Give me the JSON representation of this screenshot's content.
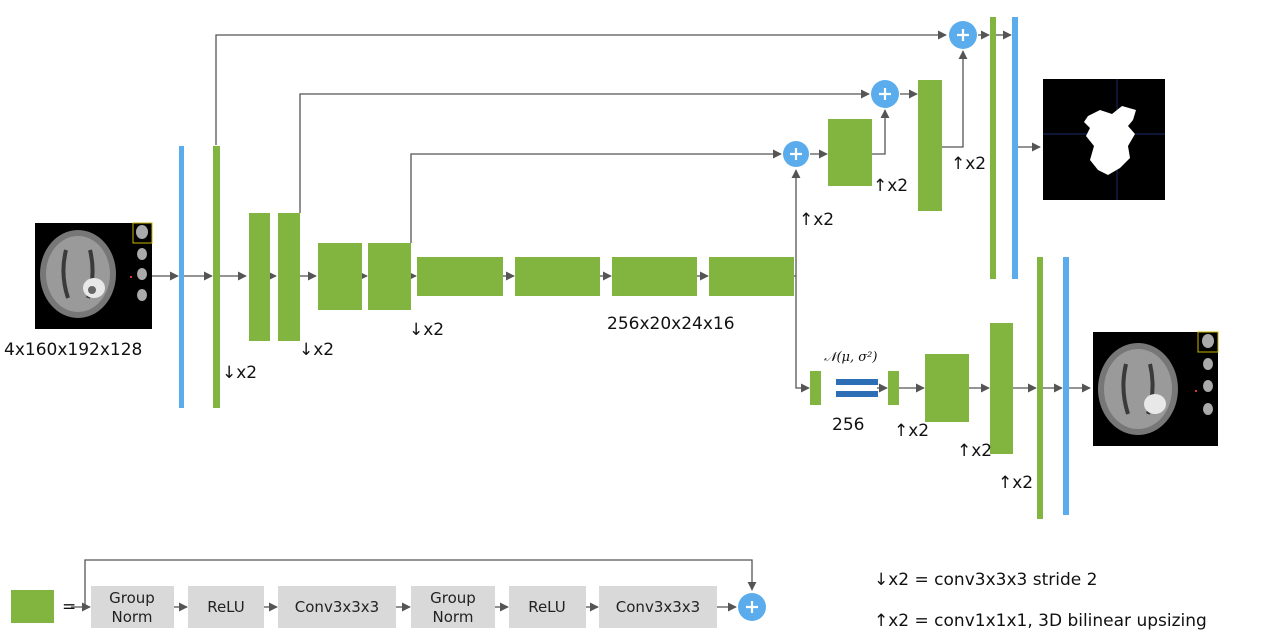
{
  "colors": {
    "green": "#82b540",
    "blue": "#5aacec",
    "darkblue": "#2c6fb6",
    "plus": "#5aacec",
    "grey_box": "#d9d9d9",
    "line": "#555555"
  },
  "labels": {
    "input_dims": "4x160x192x128",
    "bottleneck_dims": "256x20x24x16",
    "down_x2": "↓x2",
    "up_x2": "↑x2",
    "latent_dist": "𝒩(μ, σ²)",
    "latent_size": "256"
  },
  "legend": {
    "equals": "=",
    "blocks": [
      {
        "line1": "Group",
        "line2": "Norm"
      },
      {
        "line1": "ReLU",
        "line2": ""
      },
      {
        "line1": "Conv3x3x3",
        "line2": ""
      },
      {
        "line1": "Group",
        "line2": "Norm"
      },
      {
        "line1": "ReLU",
        "line2": ""
      },
      {
        "line1": "Conv3x3x3",
        "line2": ""
      }
    ],
    "down_def": "↓x2 = conv3x3x3 stride 2",
    "up_def": "↑x2 = conv1x1x1, 3D bilinear upsizing"
  },
  "icons": {
    "plus": "plus-circle-icon",
    "arrow": "arrow-head-icon"
  }
}
